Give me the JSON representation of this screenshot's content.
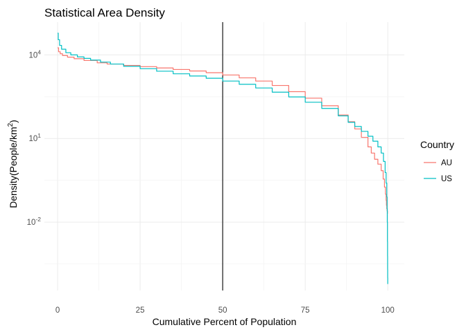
{
  "chart_data": {
    "type": "line",
    "title": "Statistical Area Density",
    "xlabel": "Cumulative Percent of Population",
    "ylabel_base": "Density(People/km",
    "ylabel_sup": "2",
    "ylabel_tail": ")",
    "xlim": [
      -4,
      105
    ],
    "xticks": [
      0,
      25,
      50,
      75,
      100
    ],
    "xtick_labels": [
      "0",
      "25",
      "50",
      "75",
      "100"
    ],
    "yscale": "log10",
    "ylim": [
      3.5e-05,
      150000
    ],
    "yticks": [
      10000,
      10,
      0.01
    ],
    "ytick_bases": [
      "10",
      "10",
      "10"
    ],
    "ytick_exps": [
      "4",
      "1",
      "-2"
    ],
    "grid": true,
    "vline": {
      "x": 50,
      "color": "#000000"
    },
    "legend": {
      "title": "Country",
      "position": "right"
    },
    "series": [
      {
        "name": "AU",
        "color": "#F8766D",
        "x": [
          0,
          0.3,
          0.8,
          1.5,
          3,
          5,
          8,
          12,
          15,
          20,
          25,
          30,
          35,
          40,
          45,
          50,
          55,
          60,
          65,
          70,
          75,
          80,
          85,
          88,
          90,
          92,
          94,
          95,
          96,
          97,
          98,
          98.6,
          99,
          99.3,
          99.5,
          99.6,
          99.7,
          99.8,
          99.9
        ],
        "y": [
          18000,
          13000,
          11000,
          9500,
          8300,
          7300,
          6300,
          5200,
          4700,
          4200,
          3800,
          3400,
          3000,
          2650,
          2300,
          1900,
          1500,
          1150,
          800,
          480,
          280,
          150,
          70,
          40,
          22,
          11,
          5,
          3,
          1.8,
          1.2,
          0.7,
          0.35,
          0.18,
          0.1,
          0.06,
          0.04,
          0.03,
          0.025,
          0.02
        ]
      },
      {
        "name": "US",
        "color": "#00BFC4",
        "x": [
          0,
          0.2,
          0.6,
          1.2,
          2.5,
          4,
          6,
          8,
          10,
          13,
          16,
          20,
          25,
          30,
          35,
          40,
          45,
          50,
          55,
          60,
          65,
          70,
          75,
          80,
          85,
          88,
          90,
          92,
          94,
          95.5,
          97,
          98,
          98.7,
          99.2,
          99.5,
          99.7,
          99.8,
          99.85,
          99.9,
          99.93,
          99.95,
          99.97,
          99.99
        ],
        "y": [
          60000,
          35000,
          22000,
          16000,
          12000,
          10000,
          8500,
          7500,
          6500,
          5500,
          4700,
          3900,
          3200,
          2600,
          2100,
          1750,
          1450,
          1150,
          880,
          650,
          460,
          310,
          200,
          120,
          65,
          38,
          27,
          18,
          12,
          8,
          5,
          3,
          1.5,
          0.6,
          0.25,
          0.08,
          0.03,
          0.01,
          0.002,
          0.0006,
          0.0002,
          0.0001,
          6e-05
        ]
      }
    ]
  }
}
